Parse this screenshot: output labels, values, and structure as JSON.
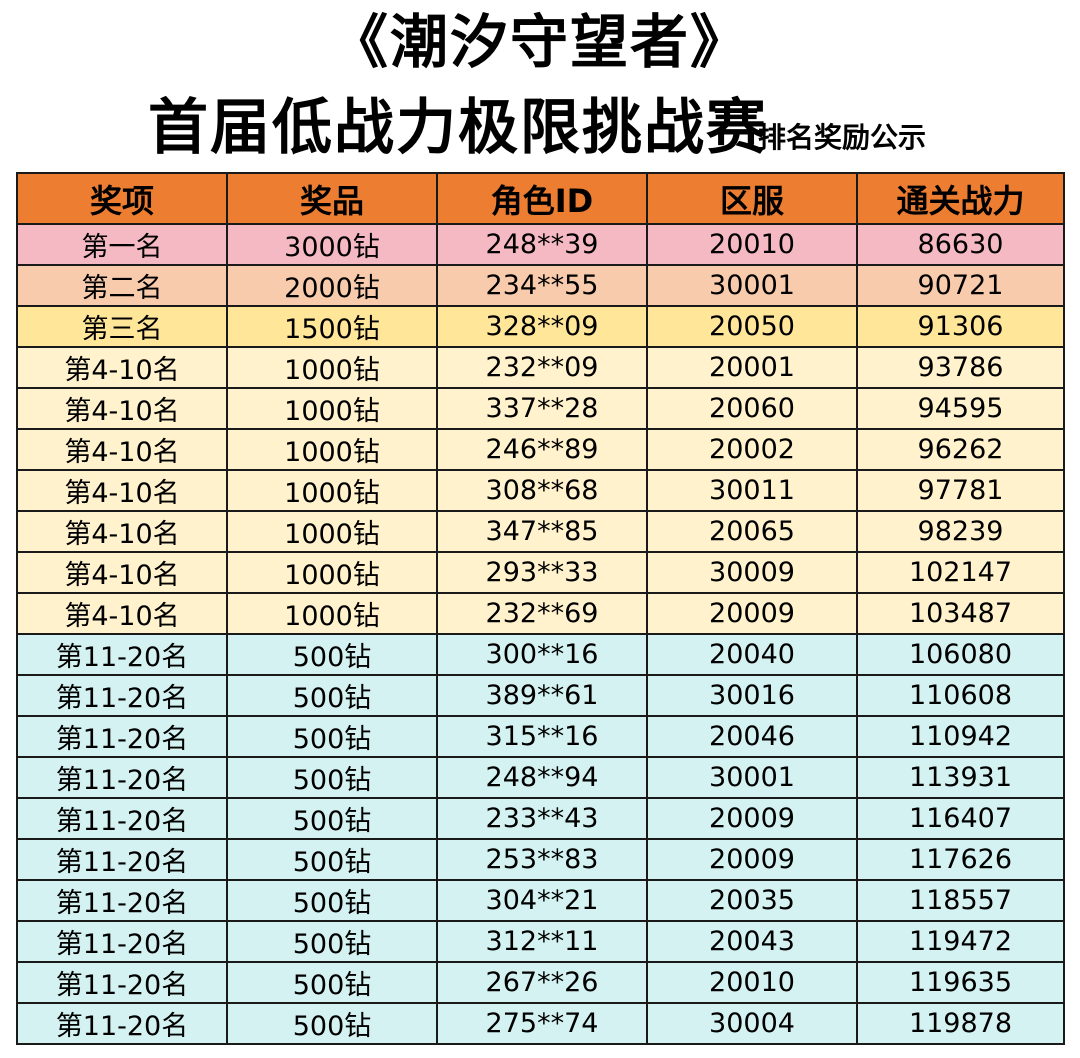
{
  "title": "《潮汐守望者》",
  "subtitle_main": "首届低战力极限挑战赛",
  "subtitle_note": "排名奖励公示",
  "colors": {
    "header": "#ED7D31",
    "rank1": "#F4B9C2",
    "rank2": "#F8CBAD",
    "rank3": "#FFE699",
    "rank4_10": "#FFF2CC",
    "rank11_20": "#D4F2F2",
    "border": "#1a1a1a"
  },
  "columns": [
    "奖项",
    "奖品",
    "角色ID",
    "区服",
    "通关战力"
  ],
  "rows": [
    {
      "tier": "rank1",
      "cells": [
        "第一名",
        "3000钻",
        "248**39",
        "20010",
        "86630"
      ]
    },
    {
      "tier": "rank2",
      "cells": [
        "第二名",
        "2000钻",
        "234**55",
        "30001",
        "90721"
      ]
    },
    {
      "tier": "rank3",
      "cells": [
        "第三名",
        "1500钻",
        "328**09",
        "20050",
        "91306"
      ]
    },
    {
      "tier": "rank4_10",
      "cells": [
        "第4-10名",
        "1000钻",
        "232**09",
        "20001",
        "93786"
      ]
    },
    {
      "tier": "rank4_10",
      "cells": [
        "第4-10名",
        "1000钻",
        "337**28",
        "20060",
        "94595"
      ]
    },
    {
      "tier": "rank4_10",
      "cells": [
        "第4-10名",
        "1000钻",
        "246**89",
        "20002",
        "96262"
      ]
    },
    {
      "tier": "rank4_10",
      "cells": [
        "第4-10名",
        "1000钻",
        "308**68",
        "30011",
        "97781"
      ]
    },
    {
      "tier": "rank4_10",
      "cells": [
        "第4-10名",
        "1000钻",
        "347**85",
        "20065",
        "98239"
      ]
    },
    {
      "tier": "rank4_10",
      "cells": [
        "第4-10名",
        "1000钻",
        "293**33",
        "30009",
        "102147"
      ]
    },
    {
      "tier": "rank4_10",
      "cells": [
        "第4-10名",
        "1000钻",
        "232**69",
        "20009",
        "103487"
      ]
    },
    {
      "tier": "rank11_20",
      "cells": [
        "第11-20名",
        "500钻",
        "300**16",
        "20040",
        "106080"
      ]
    },
    {
      "tier": "rank11_20",
      "cells": [
        "第11-20名",
        "500钻",
        "389**61",
        "30016",
        "110608"
      ]
    },
    {
      "tier": "rank11_20",
      "cells": [
        "第11-20名",
        "500钻",
        "315**16",
        "20046",
        "110942"
      ]
    },
    {
      "tier": "rank11_20",
      "cells": [
        "第11-20名",
        "500钻",
        "248**94",
        "30001",
        "113931"
      ]
    },
    {
      "tier": "rank11_20",
      "cells": [
        "第11-20名",
        "500钻",
        "233**43",
        "20009",
        "116407"
      ]
    },
    {
      "tier": "rank11_20",
      "cells": [
        "第11-20名",
        "500钻",
        "253**83",
        "20009",
        "117626"
      ]
    },
    {
      "tier": "rank11_20",
      "cells": [
        "第11-20名",
        "500钻",
        "304**21",
        "20035",
        "118557"
      ]
    },
    {
      "tier": "rank11_20",
      "cells": [
        "第11-20名",
        "500钻",
        "312**11",
        "20043",
        "119472"
      ]
    },
    {
      "tier": "rank11_20",
      "cells": [
        "第11-20名",
        "500钻",
        "267**26",
        "20010",
        "119635"
      ]
    },
    {
      "tier": "rank11_20",
      "cells": [
        "第11-20名",
        "500钻",
        "275**74",
        "30004",
        "119878"
      ]
    }
  ]
}
